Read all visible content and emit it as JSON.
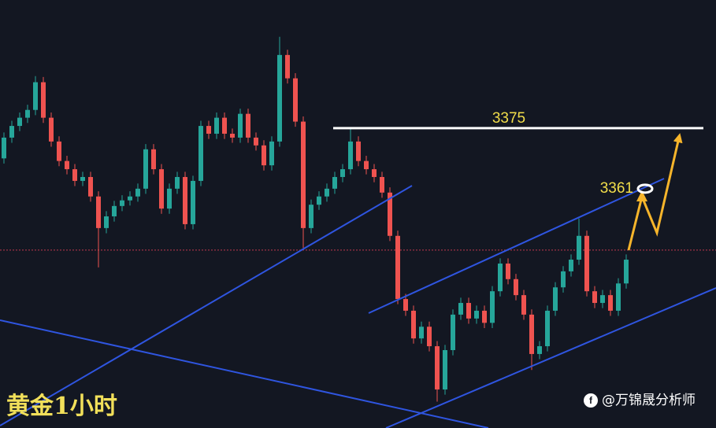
{
  "chart_data": {
    "type": "candlestick",
    "title": "黄金1小时",
    "watermark": "@万锦晟分析师",
    "open": [
      3368.0,
      3372.8,
      3375.5,
      3377.4,
      3379.2,
      3385.6,
      3377.4,
      3371.9,
      3367.4,
      3365.5,
      3362.8,
      3363.7,
      3359.2,
      3351.9,
      3354.6,
      3357.0,
      3358.3,
      3359.2,
      3361.0,
      3370.1,
      3365.5,
      3356.4,
      3361.0,
      3363.7,
      3352.8,
      3362.8,
      3375.5,
      3373.7,
      3377.4,
      3373.7,
      3372.8,
      3378.3,
      3372.8,
      3371.0,
      3366.4,
      3371.9,
      3391.9,
      3386.5,
      3376.5,
      3351.9,
      3357.3,
      3359.2,
      3361.0,
      3363.7,
      3365.5,
      3371.9,
      3367.4,
      3365.5,
      3363.7,
      3360.1,
      3350.1,
      3335.5,
      3332.8,
      3326.4,
      3329.1,
      3324.6,
      3314.6,
      3323.7,
      3331.9,
      3334.6,
      3331.0,
      3332.8,
      3330.0,
      3337.3,
      3343.7,
      3340.1,
      3336.4,
      3331.9,
      3322.8,
      3324.6,
      3332.8,
      3338.2,
      3341.9,
      3344.6,
      3350.1,
      3337.3,
      3334.6,
      3336.4,
      3332.8,
      3339.1
    ],
    "high": [
      3374.0,
      3376.7,
      3378.6,
      3380.4,
      3387.0,
      3386.8,
      3378.6,
      3373.1,
      3368.6,
      3366.7,
      3364.9,
      3364.9,
      3360.4,
      3355.8,
      3358.2,
      3359.5,
      3360.4,
      3362.2,
      3371.3,
      3371.3,
      3366.7,
      3362.2,
      3364.9,
      3364.9,
      3364.0,
      3376.7,
      3376.7,
      3378.6,
      3378.6,
      3374.9,
      3379.5,
      3379.5,
      3374.0,
      3372.2,
      3373.1,
      3396.1,
      3393.1,
      3387.7,
      3377.7,
      3358.5,
      3360.4,
      3362.2,
      3364.9,
      3366.7,
      3374.8,
      3373.1,
      3368.6,
      3366.7,
      3364.9,
      3361.3,
      3351.3,
      3336.7,
      3334.0,
      3330.3,
      3330.3,
      3325.8,
      3324.9,
      3333.1,
      3335.8,
      3335.8,
      3334.0,
      3334.0,
      3338.5,
      3344.9,
      3344.9,
      3341.3,
      3337.6,
      3333.1,
      3325.8,
      3334.0,
      3339.4,
      3343.1,
      3345.8,
      3354.1,
      3351.3,
      3338.5,
      3337.6,
      3337.6,
      3340.3,
      3345.8
    ],
    "low": [
      3366.8,
      3371.6,
      3374.3,
      3376.2,
      3378.0,
      3376.2,
      3370.7,
      3366.2,
      3364.3,
      3361.6,
      3361.6,
      3358.0,
      3342.8,
      3350.7,
      3353.4,
      3355.8,
      3357.1,
      3358.0,
      3359.8,
      3364.3,
      3355.2,
      3355.2,
      3359.8,
      3351.6,
      3351.6,
      3361.6,
      3372.5,
      3372.5,
      3372.5,
      3371.6,
      3371.6,
      3371.6,
      3369.8,
      3365.2,
      3365.2,
      3370.7,
      3385.3,
      3375.3,
      3347.3,
      3350.7,
      3356.1,
      3358.0,
      3359.8,
      3362.5,
      3364.3,
      3366.2,
      3364.3,
      3362.5,
      3358.9,
      3348.9,
      3334.3,
      3331.6,
      3325.2,
      3325.2,
      3323.4,
      3311.8,
      3313.4,
      3322.5,
      3330.7,
      3329.8,
      3329.8,
      3328.8,
      3328.8,
      3336.1,
      3338.9,
      3335.2,
      3330.7,
      3319.1,
      3321.6,
      3323.4,
      3331.6,
      3337.0,
      3340.7,
      3343.4,
      3336.1,
      3333.4,
      3333.4,
      3331.6,
      3331.6,
      3337.9
    ],
    "close": [
      3372.8,
      3375.5,
      3377.4,
      3379.2,
      3385.6,
      3377.4,
      3371.9,
      3367.4,
      3365.5,
      3362.8,
      3363.7,
      3359.2,
      3351.9,
      3354.6,
      3357.0,
      3358.3,
      3359.2,
      3361.0,
      3370.1,
      3365.5,
      3356.4,
      3361.0,
      3363.7,
      3352.8,
      3362.8,
      3375.5,
      3373.7,
      3377.4,
      3373.7,
      3372.8,
      3378.3,
      3372.8,
      3371.0,
      3366.4,
      3371.9,
      3391.9,
      3386.5,
      3376.5,
      3351.9,
      3357.3,
      3359.2,
      3361.0,
      3363.7,
      3365.5,
      3371.9,
      3367.4,
      3365.5,
      3363.7,
      3360.1,
      3350.1,
      3335.5,
      3332.8,
      3326.4,
      3329.1,
      3324.6,
      3314.6,
      3323.7,
      3331.9,
      3334.6,
      3331.0,
      3332.8,
      3330.0,
      3337.3,
      3343.7,
      3340.1,
      3336.4,
      3331.9,
      3322.8,
      3324.6,
      3332.8,
      3338.2,
      3341.9,
      3344.6,
      3350.1,
      3337.3,
      3334.6,
      3336.4,
      3332.8,
      3339.1,
      3344.6
    ],
    "ylim": [
      3305.7,
      3404.6
    ],
    "up_color": "#26a69a",
    "down_color": "#ef5350",
    "resistance": 3375,
    "target": 3361,
    "current_price": 3346.8
  }
}
